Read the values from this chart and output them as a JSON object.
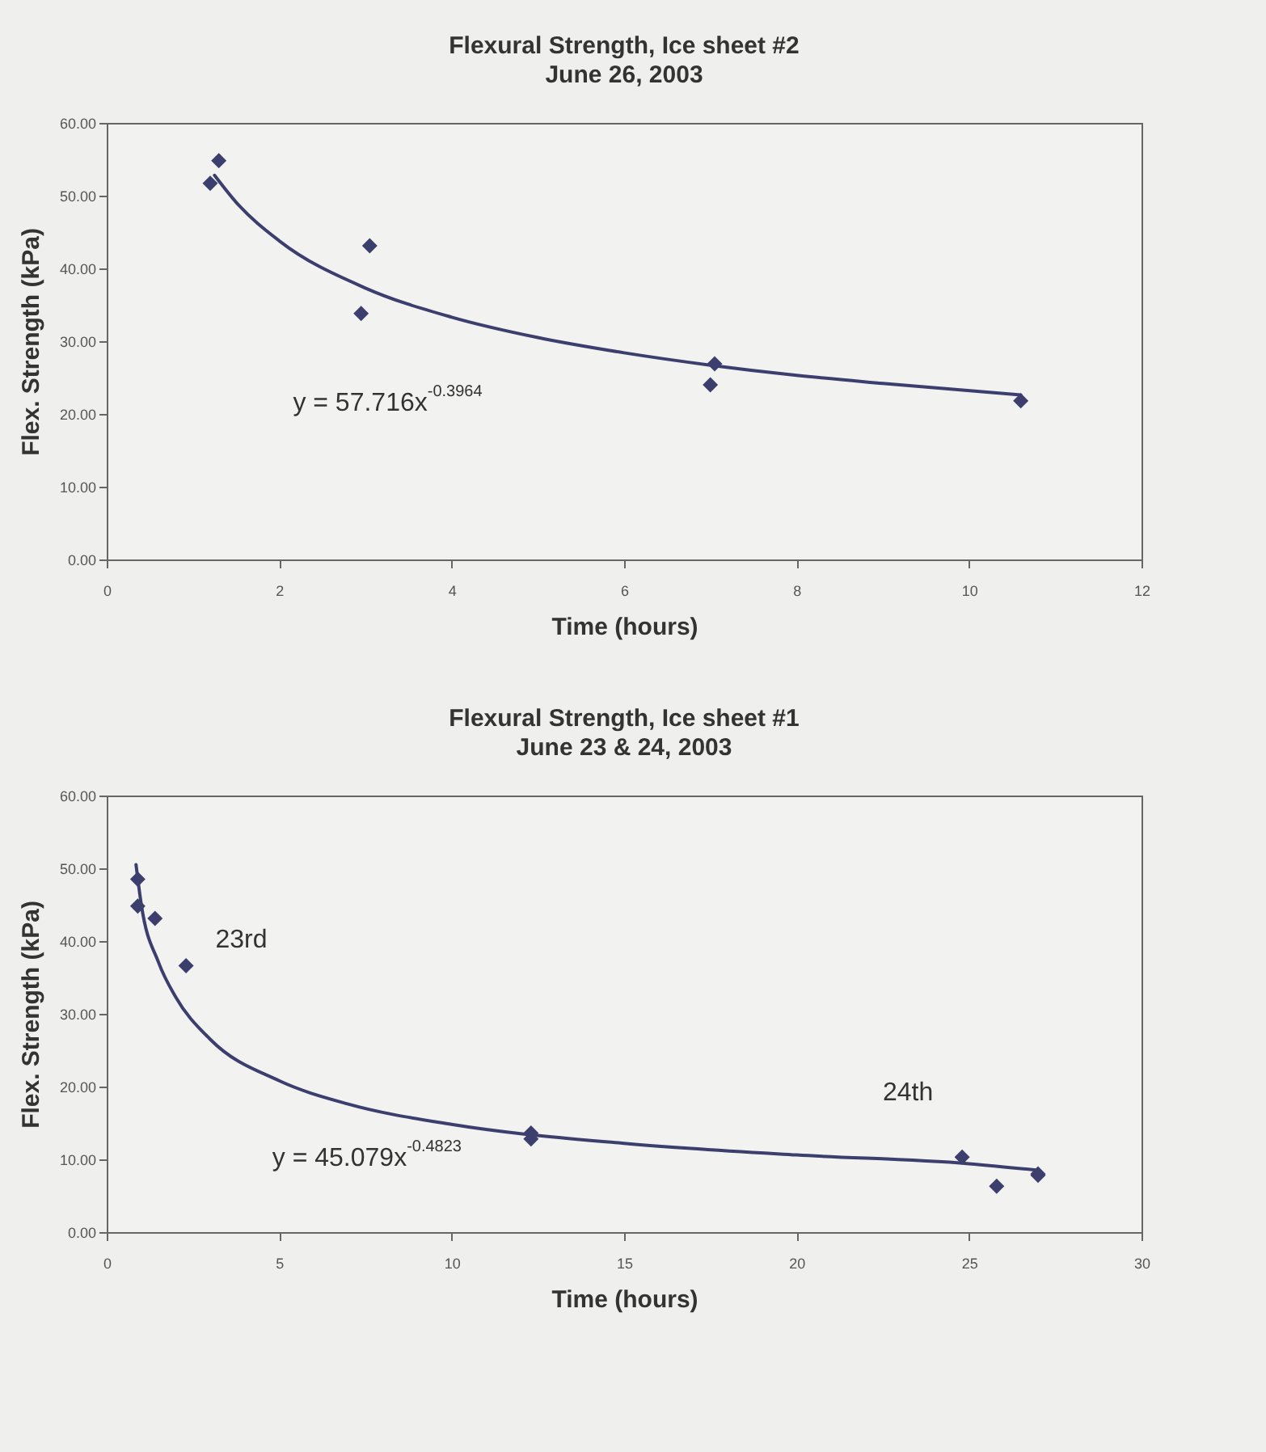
{
  "chart_data": [
    {
      "type": "scatter",
      "title": "Flexural Strength, Ice sheet #2",
      "subtitle": "June 26, 2003",
      "xlabel": "Time (hours)",
      "ylabel": "Flex. Strength (kPa)",
      "xlim": [
        0,
        12
      ],
      "xticks": [
        0,
        2,
        4,
        6,
        8,
        10,
        12
      ],
      "ylim": [
        0,
        60
      ],
      "yticks": [
        {
          "value": 0,
          "label": "0.00"
        },
        {
          "value": 10,
          "label": "10.00"
        },
        {
          "value": 20,
          "label": "20.00"
        },
        {
          "value": 30,
          "label": "30.00"
        },
        {
          "value": 40,
          "label": "40.00"
        },
        {
          "value": 50,
          "label": "50.00"
        },
        {
          "value": 60,
          "label": "60.00"
        }
      ],
      "series": [
        {
          "type": "scatter",
          "color": "#3c3f6e",
          "marker": "diamond",
          "x": [
            1.2,
            1.3,
            2.95,
            3.05,
            7.0,
            7.05,
            10.6
          ],
          "values": [
            51.7,
            54.8,
            33.8,
            43.1,
            24.0,
            26.9,
            21.8
          ]
        },
        {
          "type": "line",
          "color": "#3c3f6e",
          "marker": "none",
          "line_style": "solid",
          "x": [
            1.25,
            1.5,
            2,
            3,
            4,
            5,
            6,
            7,
            8,
            9,
            10.6
          ],
          "values": [
            52.8,
            49.1,
            43.8,
            37.3,
            33.3,
            30.5,
            28.4,
            26.7,
            25.3,
            24.2,
            22.6
          ]
        }
      ],
      "annotations": [
        "y = 57.716x$^{-0.3964}$"
      ]
    },
    {
      "type": "scatter",
      "title": "Flexural Strength, Ice sheet #1",
      "subtitle": "June 23 & 24, 2003",
      "xlabel": "Time (hours)",
      "ylabel": "Flex. Strength (kPa)",
      "xlim": [
        0,
        30
      ],
      "xticks": [
        0,
        5,
        10,
        15,
        20,
        25,
        30
      ],
      "ylim": [
        0,
        60
      ],
      "yticks": [
        {
          "value": 0,
          "label": "0.00"
        },
        {
          "value": 10,
          "label": "10.00"
        },
        {
          "value": 20,
          "label": "20.00"
        },
        {
          "value": 30,
          "label": "30.00"
        },
        {
          "value": 40,
          "label": "40.00"
        },
        {
          "value": 50,
          "label": "50.00"
        },
        {
          "value": 60,
          "label": "60.00"
        }
      ],
      "series": [
        {
          "type": "scatter",
          "color": "#3c3f6e",
          "marker": "diamond",
          "x": [
            0.9,
            0.9,
            1.4,
            2.3,
            12.3,
            12.3,
            24.8,
            25.8,
            27.0,
            27.0
          ],
          "values": [
            48.5,
            44.8,
            43.1,
            36.6,
            13.6,
            12.8,
            10.3,
            6.3,
            8.0,
            7.8
          ]
        },
        {
          "type": "line",
          "color": "#3c3f6e",
          "marker": "none",
          "line_style": "solid",
          "x": [
            0.85,
            1,
            1.5,
            2,
            3,
            5,
            7,
            10,
            15,
            20,
            25,
            27
          ],
          "values": [
            50.5,
            45.1,
            37.1,
            32.3,
            26.5,
            20.8,
            17.6,
            14.8,
            12.2,
            10.6,
            9.4,
            8.5
          ]
        }
      ],
      "annotations": [
        "23rd",
        "24th",
        "y = 45.079x$^{-0.4823}$"
      ]
    }
  ]
}
